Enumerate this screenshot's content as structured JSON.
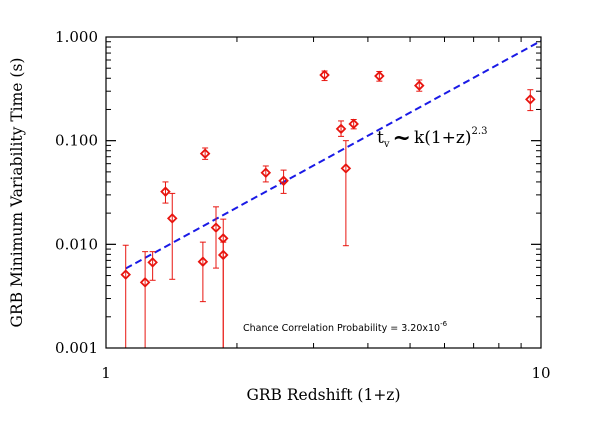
{
  "chart_data": {
    "type": "scatter",
    "title": "",
    "xlabel": "GRB Redshift (1+z)",
    "ylabel": "GRB Minimum Variability Time (s)",
    "x_scale": "log",
    "y_scale": "log",
    "xlim": [
      1,
      10
    ],
    "ylim": [
      0.001,
      1.0
    ],
    "x_ticks": [
      1,
      10
    ],
    "x_tick_labels": [
      "1",
      "10"
    ],
    "y_ticks": [
      0.001,
      0.01,
      0.1,
      1.0
    ],
    "y_tick_labels": [
      "0.001",
      "0.010",
      "0.100",
      "1.000"
    ],
    "grid": false,
    "marker": "diamond",
    "marker_color": "#e8150f",
    "points": [
      {
        "x": 1.11,
        "y": 0.0051,
        "y_low": 0.0006,
        "y_high": 0.0098
      },
      {
        "x": 1.23,
        "y": 0.0043,
        "y_low": 0.0006,
        "y_high": 0.0085
      },
      {
        "x": 1.28,
        "y": 0.0067,
        "y_low": 0.0045,
        "y_high": 0.0085
      },
      {
        "x": 1.37,
        "y": 0.0322,
        "y_low": 0.025,
        "y_high": 0.04
      },
      {
        "x": 1.42,
        "y": 0.0178,
        "y_low": 0.0046,
        "y_high": 0.031
      },
      {
        "x": 1.67,
        "y": 0.0068,
        "y_low": 0.0028,
        "y_high": 0.0105
      },
      {
        "x": 1.69,
        "y": 0.075,
        "y_low": 0.066,
        "y_high": 0.085
      },
      {
        "x": 1.79,
        "y": 0.0145,
        "y_low": 0.0059,
        "y_high": 0.023
      },
      {
        "x": 1.86,
        "y": 0.0114,
        "y_low": 0.0006,
        "y_high": 0.0175
      },
      {
        "x": 1.86,
        "y": 0.0079,
        "y_low": 0.0006,
        "y_high": 0.0105
      },
      {
        "x": 2.33,
        "y": 0.049,
        "y_low": 0.04,
        "y_high": 0.057
      },
      {
        "x": 2.56,
        "y": 0.041,
        "y_low": 0.031,
        "y_high": 0.052
      },
      {
        "x": 3.18,
        "y": 0.43,
        "y_low": 0.38,
        "y_high": 0.47
      },
      {
        "x": 3.47,
        "y": 0.13,
        "y_low": 0.11,
        "y_high": 0.155
      },
      {
        "x": 3.56,
        "y": 0.054,
        "y_low": 0.0097,
        "y_high": 0.1
      },
      {
        "x": 3.71,
        "y": 0.145,
        "y_low": 0.13,
        "y_high": 0.16
      },
      {
        "x": 4.25,
        "y": 0.42,
        "y_low": 0.375,
        "y_high": 0.465
      },
      {
        "x": 5.25,
        "y": 0.34,
        "y_low": 0.3,
        "y_high": 0.385
      },
      {
        "x": 9.45,
        "y": 0.25,
        "y_low": 0.195,
        "y_high": 0.31
      }
    ],
    "fit_line": {
      "style": "dashed",
      "color": "#1a1ae6",
      "x_start": 1.11,
      "x_end": 10.0,
      "k": 0.0046,
      "exponent": 2.3
    },
    "annotations": {
      "fit_label": {
        "tv": "t",
        "sub": "v",
        "tilde": "~",
        "formula": "k(1+z)",
        "sup": "2.3"
      },
      "probability_label": {
        "text": "Chance Correlation Probability = 3.20x10",
        "sup": "-6"
      }
    }
  }
}
